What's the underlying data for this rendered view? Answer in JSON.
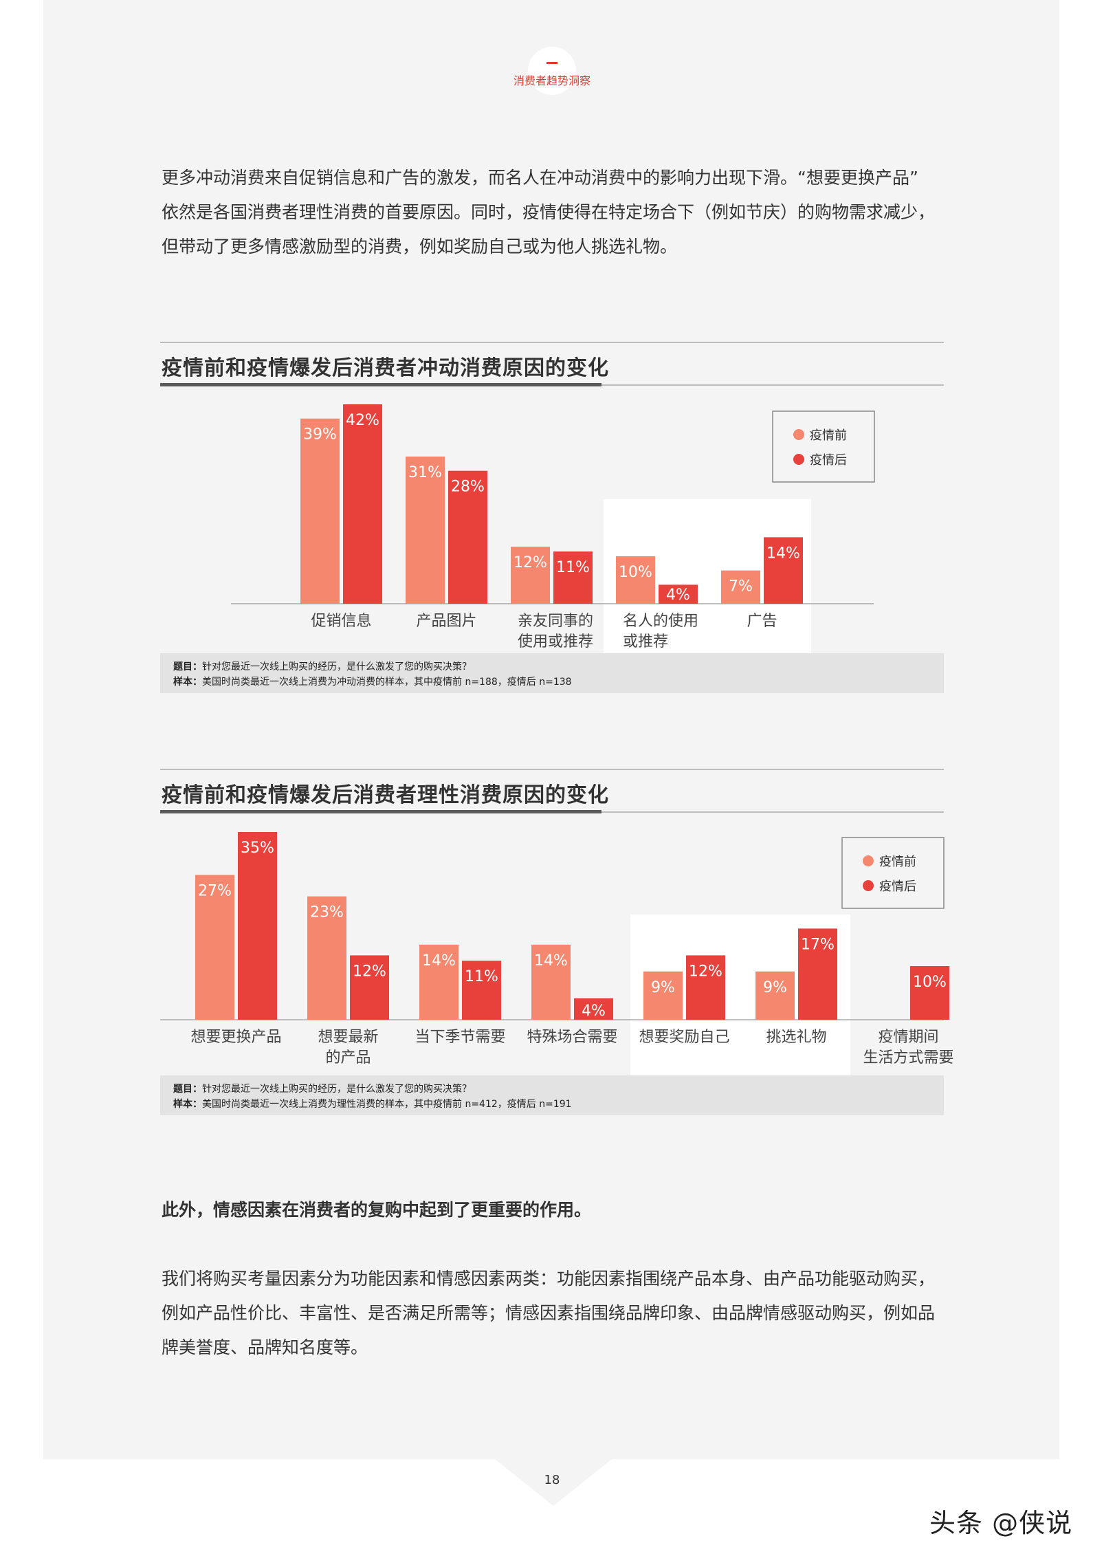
{
  "header": {
    "badge": "消费者趋势洞察"
  },
  "intro": {
    "lines": [
      "更多冲动消费来自促销信息和广告的激发，而名人在冲动消费中的影响力出现下滑。“想要更换产品”",
      "依然是各国消费者理性消费的首要原因。同时，疫情使得在特定场合下（例如节庆）的购物需求减少，",
      "但带动了更多情感激励型的消费，例如奖励自己或为他人挑选礼物。"
    ]
  },
  "chart1": {
    "title": "疫情前和疫情爆发后消费者冲动消费原因的变化",
    "note_q_label": "题目：",
    "note_q": "针对您最近一次线上购买的经历，是什么激发了您的购买决策？",
    "note_s_label": "样本：",
    "note_s": "美国时尚类最近一次线上消费为冲动消费的样本，其中疫情前 n=188，疫情后 n=138"
  },
  "chart2": {
    "title": "疫情前和疫情爆发后消费者理性消费原因的变化",
    "note_q_label": "题目：",
    "note_q": "针对您最近一次线上购买的经历，是什么激发了您的购买决策？",
    "note_s_label": "样本：",
    "note_s": "美国时尚类最近一次线上消费为理性消费的样本，其中疫情前 n=412，疫情后 n=191"
  },
  "body": {
    "bold_line": "此外，情感因素在消费者的复购中起到了更重要的作用。",
    "lines": [
      "我们将购买考量因素分为功能因素和情感因素两类：功能因素指围绕产品本身、由产品功能驱动购买，",
      "例如产品性价比、丰富性、是否满足所需等；情感因素指围绕品牌印象、由品牌情感驱动购买，例如品",
      "牌美誉度、品牌知名度等。"
    ]
  },
  "footer": {
    "page_number": "18",
    "watermark": "头条 @侠说"
  },
  "colors": {
    "before": "#f5876e",
    "after": "#e8403a",
    "accent": "#e03a30"
  },
  "chart_data": [
    {
      "type": "bar",
      "title": "疫情前和疫情爆发后消费者冲动消费原因的变化",
      "categories": [
        [
          "促销信息"
        ],
        [
          "产品图片"
        ],
        [
          "亲友同事的",
          "使用或推荐"
        ],
        [
          "名人的使用",
          "或推荐"
        ],
        [
          "广告"
        ]
      ],
      "series": [
        {
          "name": "疫情前",
          "values": [
            39,
            31,
            12,
            10,
            7
          ]
        },
        {
          "name": "疫情后",
          "values": [
            42,
            28,
            11,
            4,
            14
          ]
        }
      ],
      "unit": "%",
      "ylim": [
        0,
        42
      ],
      "legend": "top-right",
      "grid": false
    },
    {
      "type": "bar",
      "title": "疫情前和疫情爆发后消费者理性消费原因的变化",
      "categories": [
        [
          "想要更换产品"
        ],
        [
          "想要最新",
          "的产品"
        ],
        [
          "当下季节需要"
        ],
        [
          "特殊场合需要"
        ],
        [
          "想要奖励自己"
        ],
        [
          "挑选礼物"
        ],
        [
          "疫情期间",
          "生活方式需要"
        ]
      ],
      "series": [
        {
          "name": "疫情前",
          "values": [
            27,
            23,
            14,
            14,
            9,
            9,
            null
          ]
        },
        {
          "name": "疫情后",
          "values": [
            35,
            12,
            11,
            4,
            12,
            17,
            10
          ]
        }
      ],
      "unit": "%",
      "ylim": [
        0,
        35
      ],
      "legend": "top-right",
      "grid": false
    }
  ]
}
